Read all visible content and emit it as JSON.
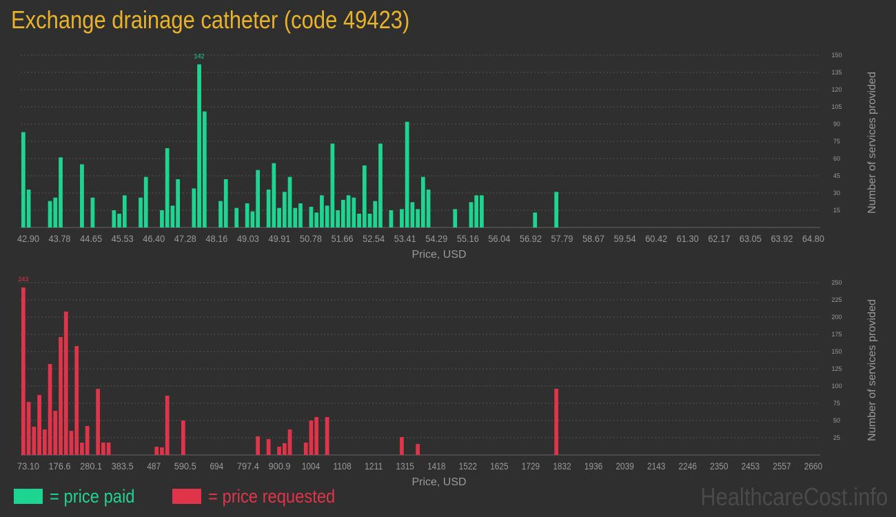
{
  "title": "Exchange drainage catheter (code 49423)",
  "colors": {
    "paid": "#1ed492",
    "requested": "#e0344a",
    "title": "#e8b32a",
    "axis": "#9a9a9a",
    "grid": "#555555"
  },
  "legend": {
    "paid_label": "= price paid",
    "requested_label": "= price requested"
  },
  "watermark": "HealthcareCost.info",
  "chart_data": [
    {
      "type": "bar",
      "series_name": "price paid",
      "xlabel": "Price, USD",
      "ylabel": "Number of services provided",
      "ylim": [
        0,
        150
      ],
      "yticks": [
        15,
        30,
        45,
        60,
        75,
        90,
        105,
        120,
        135,
        150
      ],
      "xticks": [
        "42.90",
        "43.78",
        "44.65",
        "45.53",
        "46.40",
        "47.28",
        "48.16",
        "49.03",
        "49.91",
        "50.78",
        "51.66",
        "52.54",
        "53.41",
        "54.29",
        "55.16",
        "56.04",
        "56.92",
        "57.79",
        "58.67",
        "59.54",
        "60.42",
        "61.30",
        "62.17",
        "63.05",
        "63.92",
        "64.80"
      ],
      "xrange": [
        42.9,
        64.8
      ],
      "bar_count": 150,
      "peak_label": "142",
      "bars": [
        [
          0,
          83
        ],
        [
          1,
          33
        ],
        [
          5,
          23
        ],
        [
          6,
          26
        ],
        [
          7,
          61
        ],
        [
          11,
          55
        ],
        [
          13,
          26
        ],
        [
          17,
          15
        ],
        [
          18,
          12
        ],
        [
          19,
          28
        ],
        [
          22,
          26
        ],
        [
          23,
          44
        ],
        [
          26,
          15
        ],
        [
          27,
          69
        ],
        [
          28,
          19
        ],
        [
          29,
          42
        ],
        [
          32,
          34
        ],
        [
          33,
          142
        ],
        [
          34,
          101
        ],
        [
          37,
          23
        ],
        [
          38,
          42
        ],
        [
          40,
          17
        ],
        [
          42,
          21
        ],
        [
          43,
          14
        ],
        [
          44,
          50
        ],
        [
          46,
          33
        ],
        [
          47,
          56
        ],
        [
          48,
          17
        ],
        [
          49,
          31
        ],
        [
          50,
          44
        ],
        [
          51,
          17
        ],
        [
          52,
          21
        ],
        [
          54,
          18
        ],
        [
          55,
          13
        ],
        [
          56,
          28
        ],
        [
          57,
          19
        ],
        [
          58,
          73
        ],
        [
          59,
          15
        ],
        [
          60,
          24
        ],
        [
          61,
          28
        ],
        [
          62,
          26
        ],
        [
          63,
          12
        ],
        [
          64,
          54
        ],
        [
          65,
          12
        ],
        [
          66,
          23
        ],
        [
          67,
          73
        ],
        [
          69,
          15
        ],
        [
          71,
          16
        ],
        [
          72,
          92
        ],
        [
          73,
          22
        ],
        [
          74,
          16
        ],
        [
          75,
          44
        ],
        [
          76,
          33
        ],
        [
          81,
          16
        ],
        [
          84,
          22
        ],
        [
          85,
          28
        ],
        [
          86,
          28
        ],
        [
          96,
          13
        ],
        [
          100,
          31
        ]
      ]
    },
    {
      "type": "bar",
      "series_name": "price requested",
      "xlabel": "Price, USD",
      "ylabel": "Number of services provided",
      "ylim": [
        0,
        250
      ],
      "yticks": [
        25,
        50,
        75,
        100,
        125,
        150,
        175,
        200,
        225,
        250
      ],
      "xticks": [
        "73.10",
        "176.6",
        "280.1",
        "383.5",
        "487",
        "590.5",
        "694",
        "797.4",
        "900.9",
        "1004",
        "1108",
        "1211",
        "1315",
        "1418",
        "1522",
        "1625",
        "1729",
        "1832",
        "1936",
        "2039",
        "2143",
        "2246",
        "2350",
        "2453",
        "2557",
        "2660"
      ],
      "xrange": [
        73.1,
        2660
      ],
      "bar_count": 150,
      "peak_label": "243",
      "bars": [
        [
          0,
          243
        ],
        [
          1,
          77
        ],
        [
          2,
          41
        ],
        [
          3,
          87
        ],
        [
          4,
          37
        ],
        [
          5,
          132
        ],
        [
          6,
          64
        ],
        [
          7,
          171
        ],
        [
          8,
          208
        ],
        [
          9,
          35
        ],
        [
          10,
          158
        ],
        [
          11,
          18
        ],
        [
          12,
          42
        ],
        [
          14,
          96
        ],
        [
          15,
          18
        ],
        [
          16,
          18
        ],
        [
          25,
          12
        ],
        [
          26,
          11
        ],
        [
          27,
          86
        ],
        [
          30,
          50
        ],
        [
          44,
          27
        ],
        [
          46,
          23
        ],
        [
          48,
          12
        ],
        [
          49,
          17
        ],
        [
          50,
          37
        ],
        [
          53,
          18
        ],
        [
          54,
          50
        ],
        [
          55,
          55
        ],
        [
          57,
          55
        ],
        [
          71,
          26
        ],
        [
          74,
          16
        ],
        [
          100,
          96
        ]
      ]
    }
  ]
}
